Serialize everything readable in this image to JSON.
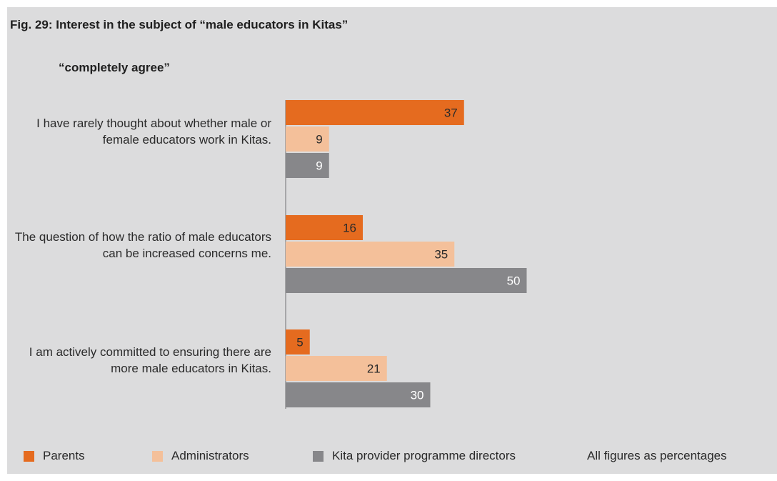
{
  "chart_data": {
    "type": "bar",
    "orientation": "horizontal",
    "title": "Fig. 29: Interest in the subject of “male educators in Kitas”",
    "subtitle": "“completely agree”",
    "categories": [
      "I have rarely thought about whether male or female educators work in Kitas.",
      "The question of how the ratio of male educators can be increased concerns me.",
      "I am actively committed to ensuring there are more male educators in Kitas."
    ],
    "series": [
      {
        "name": "Parents",
        "color": "#e56b1f",
        "label_color": "#2a2a2a",
        "values": [
          37,
          16,
          5
        ]
      },
      {
        "name": "Administrators",
        "color": "#f4c09a",
        "label_color": "#2a2a2a",
        "values": [
          9,
          35,
          21
        ]
      },
      {
        "name": "Kita provider programme directors",
        "color": "#87878a",
        "label_color": "#ffffff",
        "values": [
          9,
          50,
          30
        ]
      }
    ],
    "xlim": [
      0,
      100
    ],
    "grid": false,
    "legend_position": "bottom",
    "note": "All figures as percentages"
  }
}
